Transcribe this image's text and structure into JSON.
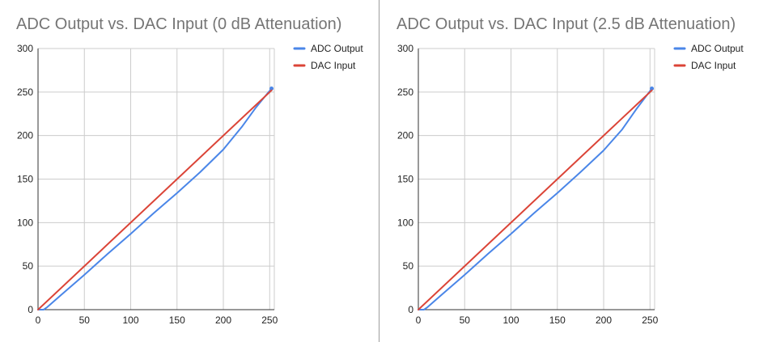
{
  "colors": {
    "adc": "#4a86e8",
    "dac": "#db4437",
    "grid": "#cccccc",
    "axis": "#333333",
    "title": "#757575",
    "text": "#222222",
    "divider": "#9e9e9e"
  },
  "chart_data": [
    {
      "type": "line",
      "title": "ADC Output vs. DAC Input (0 dB Attenuation)",
      "xlabel": "",
      "ylabel": "",
      "xlim": [
        0,
        255
      ],
      "ylim": [
        0,
        300
      ],
      "xticks": [
        0,
        50,
        100,
        150,
        200,
        250
      ],
      "yticks": [
        0,
        50,
        100,
        150,
        200,
        250,
        300
      ],
      "grid": true,
      "legend_position": "top-right",
      "series": [
        {
          "name": "ADC Output",
          "color": "#4a86e8",
          "x": [
            0,
            6,
            10,
            25,
            50,
            75,
            100,
            125,
            150,
            175,
            200,
            220,
            235,
            245,
            252
          ],
          "y": [
            0,
            0,
            3,
            17,
            40,
            64,
            87,
            111,
            134,
            158,
            184,
            210,
            232,
            245,
            254
          ]
        },
        {
          "name": "DAC Input",
          "color": "#db4437",
          "x": [
            0,
            252
          ],
          "y": [
            0,
            252
          ]
        }
      ]
    },
    {
      "type": "line",
      "title": "ADC Output vs. DAC Input (2.5 dB Attenuation)",
      "xlabel": "",
      "ylabel": "",
      "xlim": [
        0,
        255
      ],
      "ylim": [
        0,
        300
      ],
      "xticks": [
        0,
        50,
        100,
        150,
        200,
        250
      ],
      "yticks": [
        0,
        50,
        100,
        150,
        200,
        250,
        300
      ],
      "grid": true,
      "legend_position": "top-right",
      "series": [
        {
          "name": "ADC Output",
          "color": "#4a86e8",
          "x": [
            0,
            6,
            10,
            25,
            50,
            75,
            100,
            125,
            150,
            175,
            200,
            220,
            235,
            245,
            252
          ],
          "y": [
            0,
            0,
            3,
            17,
            40,
            64,
            87,
            111,
            134,
            158,
            183,
            207,
            230,
            244,
            254
          ]
        },
        {
          "name": "DAC Input",
          "color": "#db4437",
          "x": [
            0,
            252
          ],
          "y": [
            0,
            252
          ]
        }
      ]
    }
  ]
}
